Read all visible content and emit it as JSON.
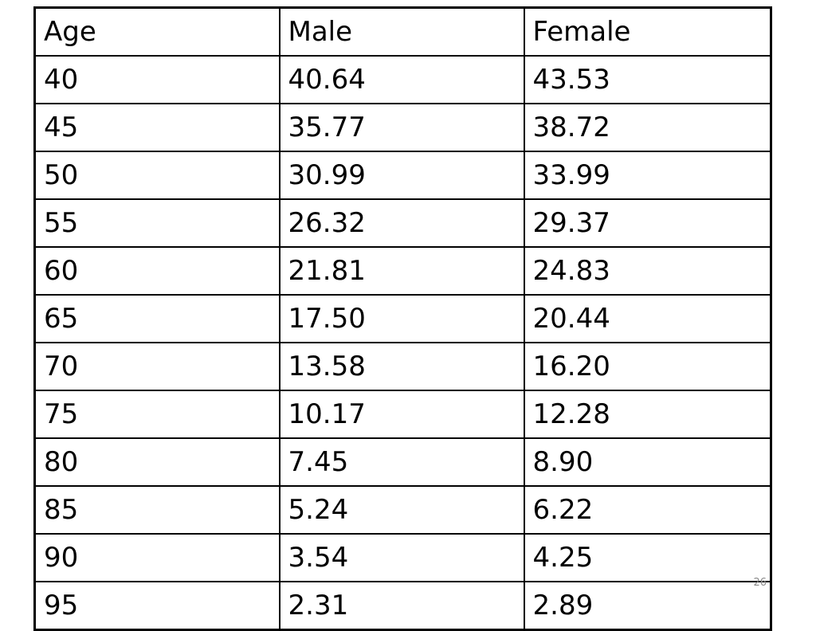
{
  "chart_data": {
    "type": "table",
    "columns": [
      "Age",
      "Male",
      "Female"
    ],
    "rows": [
      [
        "40",
        "40.64",
        "43.53"
      ],
      [
        "45",
        "35.77",
        "38.72"
      ],
      [
        "50",
        "30.99",
        "33.99"
      ],
      [
        "55",
        "26.32",
        "29.37"
      ],
      [
        "60",
        "21.81",
        "24.83"
      ],
      [
        "65",
        "17.50",
        "20.44"
      ],
      [
        "70",
        "13.58",
        "16.20"
      ],
      [
        "75",
        "10.17",
        "12.28"
      ],
      [
        "80",
        "7.45",
        "8.90"
      ],
      [
        "85",
        "5.24",
        "6.22"
      ],
      [
        "90",
        "3.54",
        "4.25"
      ],
      [
        "95",
        "2.31",
        "2.89"
      ]
    ]
  },
  "slide": {
    "page_number": "26"
  }
}
